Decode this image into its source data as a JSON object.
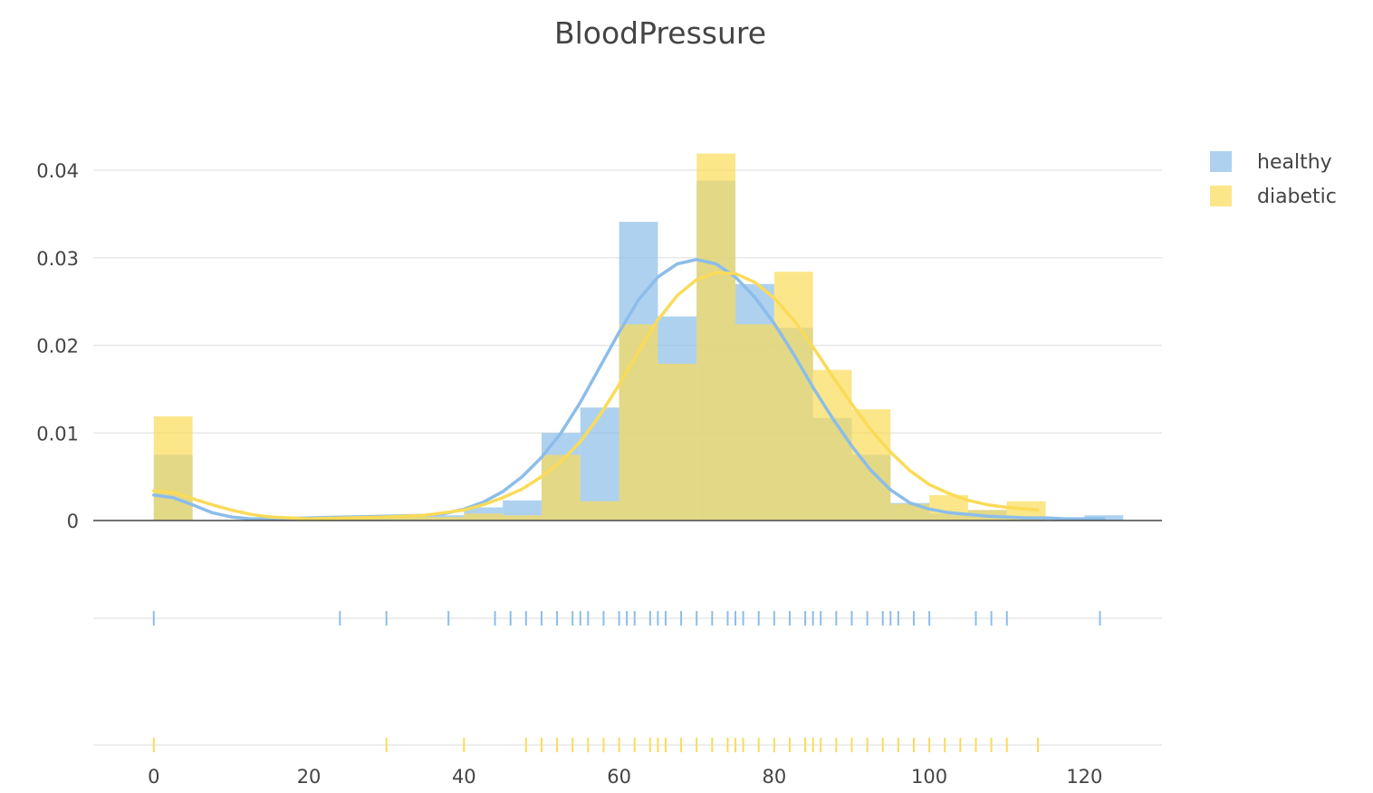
{
  "chart_data": {
    "type": "histogram",
    "title": "BloodPressure",
    "xlabel": "",
    "ylabel": "",
    "xlim": [
      -7.8,
      130
    ],
    "ylim": [
      0,
      0.045
    ],
    "x_ticks": [
      0,
      20,
      40,
      60,
      80,
      100,
      120
    ],
    "y_ticks": [
      0,
      0.01,
      0.02,
      0.03,
      0.04
    ],
    "y_tick_labels": [
      "0",
      "0.01",
      "0.02",
      "0.03",
      "0.04"
    ],
    "bin_width": 5,
    "grid": true,
    "legend_position": "top-right",
    "series": [
      {
        "name": "healthy",
        "color": "#8cbde9",
        "bins": [
          {
            "start": 0,
            "value": 0.0075
          },
          {
            "start": 20,
            "value": 0.0004
          },
          {
            "start": 25,
            "value": 0.0004
          },
          {
            "start": 30,
            "value": 0.0006
          },
          {
            "start": 35,
            "value": 0.0006
          },
          {
            "start": 40,
            "value": 0.0015
          },
          {
            "start": 45,
            "value": 0.0023
          },
          {
            "start": 50,
            "value": 0.01
          },
          {
            "start": 55,
            "value": 0.0129
          },
          {
            "start": 60,
            "value": 0.0341
          },
          {
            "start": 65,
            "value": 0.0233
          },
          {
            "start": 70,
            "value": 0.0388
          },
          {
            "start": 75,
            "value": 0.027
          },
          {
            "start": 80,
            "value": 0.022
          },
          {
            "start": 85,
            "value": 0.0117
          },
          {
            "start": 90,
            "value": 0.0075
          },
          {
            "start": 95,
            "value": 0.002
          },
          {
            "start": 100,
            "value": 0.0008
          },
          {
            "start": 105,
            "value": 0.0012
          },
          {
            "start": 110,
            "value": 0.0004
          },
          {
            "start": 120,
            "value": 0.0006
          }
        ],
        "kde": {
          "x": [
            0,
            2.5,
            5,
            7.5,
            10,
            12.5,
            15,
            20,
            25,
            30,
            35,
            37.5,
            40,
            42.5,
            45,
            47.5,
            50,
            52.5,
            55,
            57.5,
            60,
            62.5,
            65,
            67.5,
            70,
            72.5,
            75,
            77.5,
            80,
            82.5,
            85,
            87.5,
            90,
            92.5,
            95,
            97.5,
            100,
            102.5,
            105,
            107.5,
            110,
            112.5,
            115,
            117.5,
            120,
            122.5
          ],
          "y": [
            0.0029,
            0.0026,
            0.0018,
            0.0009,
            0.0004,
            0.0002,
            0.0002,
            0.0003,
            0.0004,
            0.0005,
            0.0006,
            0.0008,
            0.0013,
            0.0021,
            0.0033,
            0.005,
            0.0072,
            0.01,
            0.0135,
            0.0175,
            0.0215,
            0.0252,
            0.0278,
            0.0293,
            0.0298,
            0.0293,
            0.0278,
            0.0255,
            0.0225,
            0.019,
            0.0152,
            0.0117,
            0.0085,
            0.0057,
            0.0035,
            0.002,
            0.0013,
            0.0009,
            0.0007,
            0.0005,
            0.0004,
            0.0003,
            0.0003,
            0.0002,
            0.0002,
            0.0002
          ]
        },
        "rug": [
          0,
          24,
          30,
          38,
          44,
          46,
          48,
          50,
          52,
          54,
          55,
          56,
          58,
          60,
          61,
          62,
          64,
          65,
          66,
          68,
          70,
          72,
          74,
          75,
          76,
          78,
          80,
          82,
          84,
          85,
          86,
          88,
          90,
          92,
          94,
          95,
          96,
          98,
          100,
          106,
          108,
          110,
          122
        ]
      },
      {
        "name": "diabetic",
        "color": "#fadb58",
        "bins": [
          {
            "start": 0,
            "value": 0.0119
          },
          {
            "start": 20,
            "value": 0.0002
          },
          {
            "start": 25,
            "value": 0.0002
          },
          {
            "start": 30,
            "value": 0.0004
          },
          {
            "start": 35,
            "value": 0.0004
          },
          {
            "start": 40,
            "value": 0.0008
          },
          {
            "start": 45,
            "value": 0.0006
          },
          {
            "start": 50,
            "value": 0.0075
          },
          {
            "start": 55,
            "value": 0.0022
          },
          {
            "start": 60,
            "value": 0.0224
          },
          {
            "start": 65,
            "value": 0.0179
          },
          {
            "start": 70,
            "value": 0.0419
          },
          {
            "start": 75,
            "value": 0.0224
          },
          {
            "start": 80,
            "value": 0.0284
          },
          {
            "start": 85,
            "value": 0.0172
          },
          {
            "start": 90,
            "value": 0.0127
          },
          {
            "start": 95,
            "value": 0.0019
          },
          {
            "start": 100,
            "value": 0.0029
          },
          {
            "start": 105,
            "value": 0.0012
          },
          {
            "start": 110,
            "value": 0.0022
          }
        ],
        "kde": {
          "x": [
            0,
            2.5,
            5,
            7.5,
            10,
            12.5,
            15,
            20,
            25,
            30,
            35,
            40,
            42.5,
            45,
            47.5,
            50,
            52.5,
            55,
            57.5,
            60,
            62.5,
            65,
            67.5,
            70,
            72.5,
            75,
            77.5,
            80,
            82.5,
            85,
            87.5,
            90,
            92.5,
            95,
            97.5,
            100,
            102.5,
            105,
            107.5,
            110,
            112.5,
            114
          ],
          "y": [
            0.0034,
            0.0032,
            0.0025,
            0.0018,
            0.0012,
            0.0007,
            0.0004,
            0.0002,
            0.0003,
            0.0004,
            0.0006,
            0.0012,
            0.0018,
            0.0026,
            0.0036,
            0.005,
            0.0067,
            0.009,
            0.012,
            0.0155,
            0.0193,
            0.0229,
            0.0257,
            0.0275,
            0.0283,
            0.0282,
            0.0272,
            0.0254,
            0.0229,
            0.0198,
            0.0165,
            0.0133,
            0.0103,
            0.0078,
            0.0057,
            0.0041,
            0.0031,
            0.0023,
            0.0018,
            0.0015,
            0.0013,
            0.0012
          ]
        },
        "rug": [
          0,
          30,
          40,
          48,
          50,
          52,
          54,
          56,
          58,
          60,
          62,
          64,
          65,
          66,
          68,
          70,
          72,
          74,
          75,
          76,
          78,
          80,
          82,
          84,
          85,
          86,
          88,
          90,
          92,
          94,
          96,
          98,
          100,
          102,
          104,
          106,
          108,
          110,
          114
        ]
      }
    ]
  }
}
